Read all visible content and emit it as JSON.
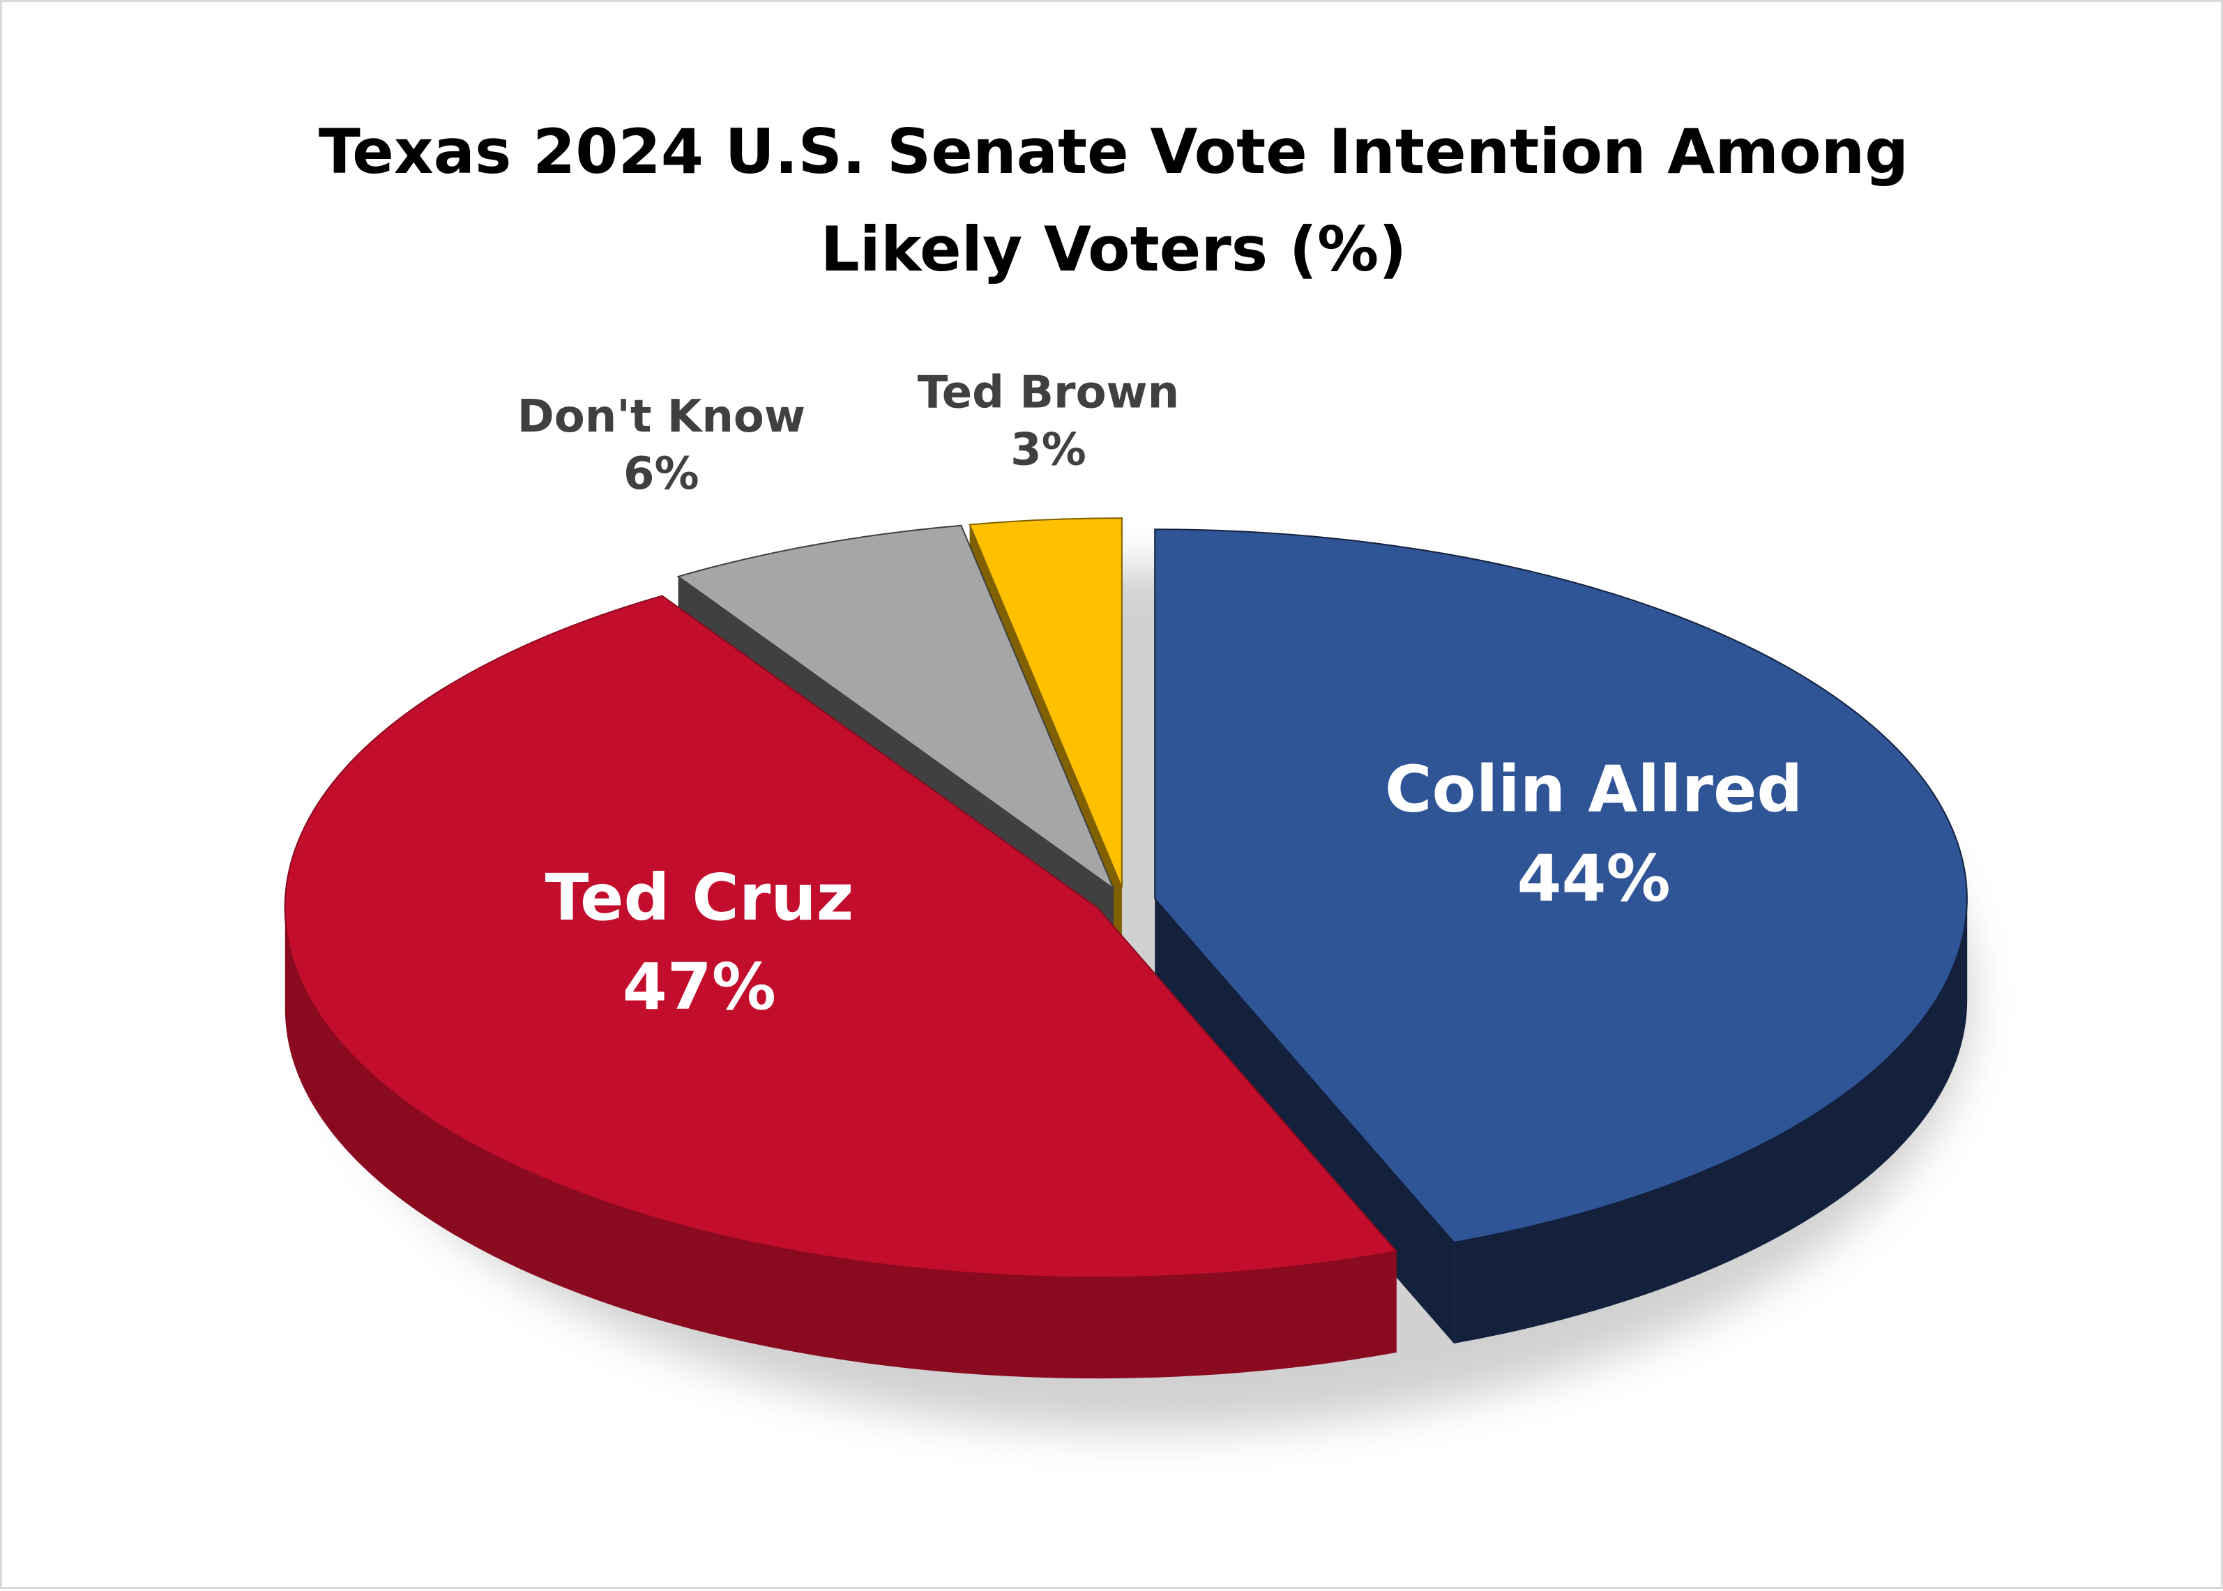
{
  "chart_data": {
    "type": "pie",
    "title": "Texas 2024 U.S. Senate Vote Intention Among Likely Voters (%)",
    "title_lines": [
      "Texas 2024 U.S. Senate Vote Intention Among",
      "Likely Voters (%)"
    ],
    "style": "3d-exploded",
    "legend": "none",
    "slices": [
      {
        "label": "Colin Allred",
        "value": 44,
        "value_label": "44%",
        "color": "#2f5597",
        "side_color": "#14213d",
        "label_color": "#ffffff"
      },
      {
        "label": "Ted Cruz",
        "value": 47,
        "value_label": "47%",
        "color": "#c30d2c",
        "side_color": "#8a0a1f",
        "label_color": "#ffffff"
      },
      {
        "label": "Don't Know",
        "value": 6,
        "value_label": "6%",
        "color": "#a6a6a6",
        "side_color": "#404040",
        "label_color": "#404040"
      },
      {
        "label": "Ted Brown",
        "value": 3,
        "value_label": "3%",
        "color": "#ffc000",
        "side_color": "#806000",
        "label_color": "#404040"
      }
    ]
  }
}
